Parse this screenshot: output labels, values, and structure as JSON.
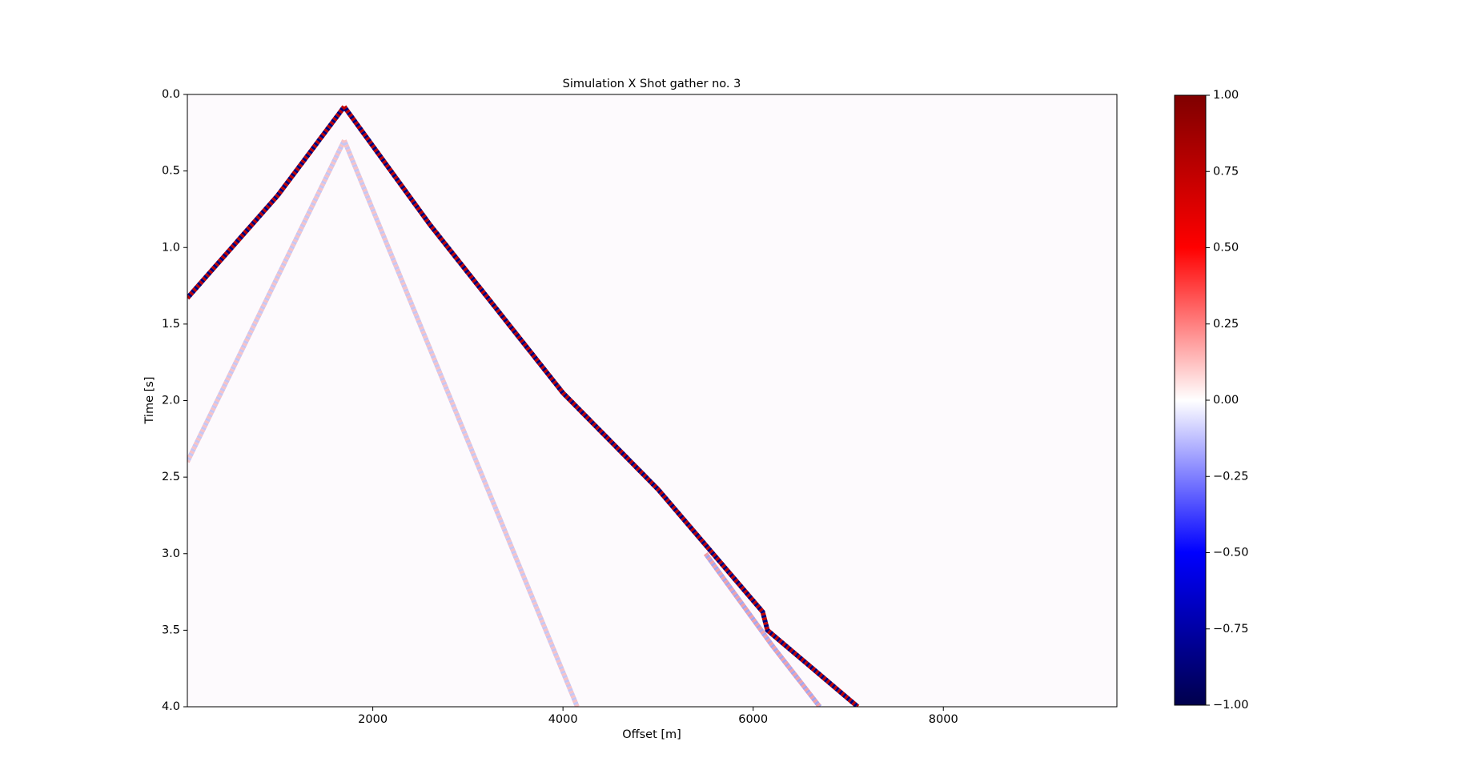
{
  "chart_data": {
    "type": "wavefield",
    "title": "Simulation X Shot gather no. 3",
    "x_label": "Offset [m]",
    "y_label": "Time [s]",
    "xlim": [
      50,
      9825
    ],
    "xticks": [
      2000,
      4000,
      6000,
      8000
    ],
    "ylim": [
      4,
      0
    ],
    "yticks": [
      {
        "value": 0,
        "label": "0.0"
      },
      0.5,
      {
        "value": 1,
        "label": "1.0"
      },
      1.5,
      {
        "value": 2,
        "label": "2.0"
      },
      2.5,
      {
        "value": 3,
        "label": "3.0"
      },
      3.5,
      {
        "value": 4,
        "label": "4.0"
      }
    ],
    "background": "#fdfafd",
    "series": [
      {
        "colors": [
          "#f7c2c6",
          "#c6c6f4"
        ],
        "x": [
          1700,
          50
        ],
        "values": [
          0.3,
          2.4
        ]
      },
      {
        "colors": [
          "#f7c2c6",
          "#c6c6f4"
        ],
        "x": [
          1700,
          4150
        ],
        "values": [
          0.3,
          4.0
        ]
      },
      {
        "colors": [
          "#f2a0a6",
          "#a6a6ee"
        ],
        "x": [
          5500,
          6200,
          6700
        ],
        "values": [
          3.0,
          3.6,
          4.0
        ]
      },
      {
        "colors": [
          "#c00000",
          "#00007a"
        ],
        "x": [
          1700,
          1000,
          50
        ],
        "values": [
          0.08,
          0.66,
          1.33
        ]
      },
      {
        "colors": [
          "#c00000",
          "#00007a"
        ],
        "x": [
          1700,
          2600,
          4000,
          5000,
          6100,
          6150,
          7100
        ],
        "values": [
          0.08,
          0.85,
          1.95,
          2.58,
          3.38,
          3.5,
          4.0
        ]
      }
    ],
    "clim": [
      -1,
      1
    ],
    "cticks": [
      {
        "value": -1,
        "label": "−1.00"
      },
      {
        "value": -0.75,
        "label": "−0.75"
      },
      {
        "value": -0.5,
        "label": "−0.50"
      },
      {
        "value": -0.25,
        "label": "−0.25"
      },
      {
        "value": 0,
        "label": "0.00"
      },
      {
        "value": 0.25,
        "label": "0.25"
      },
      {
        "value": 0.5,
        "label": "0.50"
      },
      {
        "value": 0.75,
        "label": "0.75"
      },
      {
        "value": 1,
        "label": "1.00"
      }
    ]
  }
}
